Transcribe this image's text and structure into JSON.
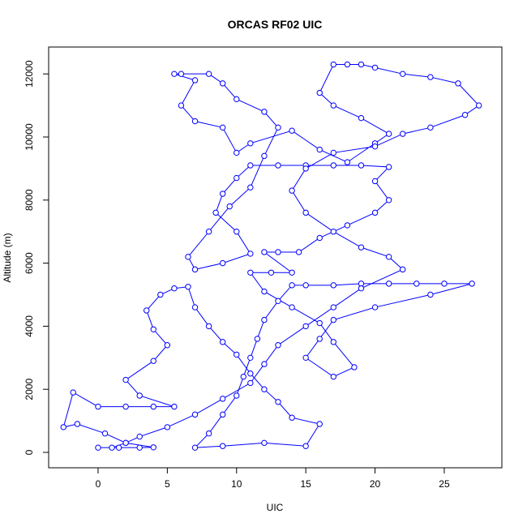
{
  "chart_data": {
    "type": "scatter",
    "title": "ORCAS RF02 UIC",
    "x_label": "UIC",
    "y_label": "Altitude (m)",
    "xlim": [
      -3.57,
      29.16
    ],
    "ylim": [
      -488,
      12853
    ],
    "xticks": [
      0,
      5,
      10,
      15,
      20,
      25
    ],
    "yticks": [
      0,
      2000,
      4000,
      6000,
      8000,
      10000,
      12000
    ],
    "series": [
      {
        "color": "#0000ff",
        "x": [
          0,
          1.5,
          3,
          4,
          2,
          0.5,
          -1.5,
          -2.5,
          -1.8,
          0,
          2,
          4,
          5.5,
          3,
          2,
          4,
          5,
          4,
          3.5,
          4.5,
          5.5,
          6.5,
          7,
          8,
          9,
          10,
          11,
          12,
          13,
          14,
          16,
          15,
          12,
          9,
          7,
          8,
          9,
          10,
          10.5,
          11,
          11.5,
          12,
          13,
          14,
          15,
          17,
          19,
          21,
          23,
          25,
          27,
          24,
          20,
          17,
          16,
          15,
          17,
          18.5,
          17,
          16,
          14,
          12,
          11,
          12.5,
          14,
          12,
          13,
          14.5,
          16,
          18,
          20,
          21,
          20,
          21,
          19,
          17,
          15,
          13,
          11,
          10,
          9,
          8.5,
          10,
          11,
          9,
          7,
          6.5,
          8,
          9.5,
          11,
          12,
          13,
          12,
          10,
          9,
          8,
          6,
          5.5,
          7,
          6,
          7,
          9,
          10,
          11,
          14,
          16,
          18,
          20,
          21,
          19,
          17,
          16,
          17,
          18,
          19,
          20,
          22,
          24,
          26,
          27.5,
          26.5,
          24,
          22,
          20,
          17,
          15,
          14,
          15,
          17,
          19,
          21,
          22,
          19,
          17,
          15,
          13,
          12,
          11,
          9,
          7,
          5,
          3,
          2,
          1
        ],
        "values": [
          150,
          150,
          150,
          160,
          300,
          600,
          900,
          800,
          1900,
          1450,
          1450,
          1450,
          1450,
          1800,
          2300,
          2900,
          3400,
          3900,
          4500,
          5000,
          5200,
          5250,
          4600,
          4000,
          3500,
          3100,
          2500,
          2000,
          1600,
          1100,
          900,
          200,
          300,
          200,
          150,
          600,
          1200,
          1800,
          2400,
          3000,
          3600,
          4200,
          4800,
          5300,
          5300,
          5300,
          5350,
          5350,
          5350,
          5350,
          5350,
          5000,
          4600,
          4200,
          3600,
          3000,
          2400,
          2700,
          3500,
          4100,
          4600,
          5100,
          5700,
          5700,
          5700,
          6350,
          6350,
          6350,
          6800,
          7200,
          7600,
          8000,
          8600,
          9050,
          9100,
          9100,
          9100,
          9100,
          9100,
          8700,
          8200,
          7600,
          7000,
          6300,
          6000,
          5800,
          6200,
          7000,
          7800,
          8400,
          9400,
          10300,
          10800,
          11200,
          11700,
          12000,
          12000,
          12000,
          11800,
          11000,
          10500,
          10300,
          9500,
          9800,
          10200,
          9600,
          9200,
          9800,
          10100,
          10600,
          11000,
          11400,
          12300,
          12300,
          12300,
          12200,
          12000,
          11900,
          11700,
          11000,
          10700,
          10300,
          10100,
          9700,
          9500,
          9000,
          8300,
          7600,
          7000,
          6500,
          6200,
          5800,
          5200,
          4600,
          4000,
          3400,
          2800,
          2200,
          1700,
          1200,
          800,
          500,
          300,
          150
        ]
      }
    ]
  }
}
